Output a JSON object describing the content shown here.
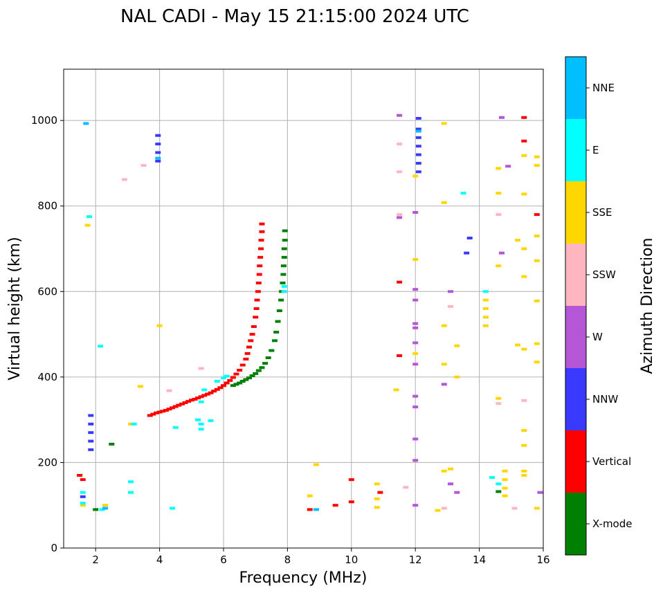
{
  "chart_data": {
    "type": "scatter",
    "title": "NAL CADI - May 15 21:15:00 2024 UTC",
    "xlabel": "Frequency (MHz)",
    "ylabel": "Virtual height (km)",
    "xlim": [
      1,
      16
    ],
    "ylim": [
      0,
      1120
    ],
    "xticks": [
      2,
      4,
      6,
      8,
      10,
      12,
      14,
      16
    ],
    "yticks": [
      0,
      200,
      400,
      600,
      800,
      1000
    ],
    "grid": true,
    "colorbar": {
      "label": "Azimuth Direction",
      "categories": [
        {
          "name": "X-mode",
          "color": "#008000"
        },
        {
          "name": "Vertical",
          "color": "#ff0000"
        },
        {
          "name": "NNW",
          "color": "#3a3aff"
        },
        {
          "name": "W",
          "color": "#b556d6"
        },
        {
          "name": "SSW",
          "color": "#ffb6c1"
        },
        {
          "name": "SSE",
          "color": "#ffd700"
        },
        {
          "name": "E",
          "color": "#00ffff"
        },
        {
          "name": "NNE",
          "color": "#00bfff"
        }
      ]
    },
    "series": [
      {
        "name": "Vertical",
        "color": "#ff0000",
        "points": [
          [
            3.7,
            310
          ],
          [
            3.8,
            313
          ],
          [
            3.9,
            316
          ],
          [
            4.0,
            318
          ],
          [
            4.1,
            320
          ],
          [
            4.2,
            322
          ],
          [
            4.3,
            325
          ],
          [
            4.4,
            328
          ],
          [
            4.5,
            331
          ],
          [
            4.6,
            334
          ],
          [
            4.7,
            337
          ],
          [
            4.8,
            340
          ],
          [
            4.9,
            343
          ],
          [
            5.0,
            346
          ],
          [
            5.1,
            348
          ],
          [
            5.2,
            351
          ],
          [
            5.3,
            354
          ],
          [
            5.4,
            357
          ],
          [
            5.5,
            360
          ],
          [
            5.6,
            363
          ],
          [
            5.7,
            367
          ],
          [
            5.8,
            371
          ],
          [
            5.9,
            375
          ],
          [
            6.0,
            380
          ],
          [
            6.1,
            386
          ],
          [
            6.2,
            392
          ],
          [
            6.3,
            399
          ],
          [
            6.4,
            407
          ],
          [
            6.5,
            416
          ],
          [
            6.6,
            428
          ],
          [
            6.7,
            442
          ],
          [
            6.75,
            455
          ],
          [
            6.8,
            470
          ],
          [
            6.85,
            485
          ],
          [
            6.9,
            500
          ],
          [
            6.95,
            518
          ],
          [
            7.0,
            540
          ],
          [
            7.03,
            560
          ],
          [
            7.05,
            580
          ],
          [
            7.08,
            600
          ],
          [
            7.1,
            620
          ],
          [
            7.12,
            640
          ],
          [
            7.13,
            660
          ],
          [
            7.15,
            680
          ],
          [
            7.17,
            700
          ],
          [
            7.18,
            720
          ],
          [
            7.2,
            740
          ],
          [
            7.2,
            758
          ],
          [
            1.5,
            170
          ],
          [
            1.6,
            160
          ],
          [
            8.7,
            90
          ],
          [
            9.5,
            100
          ],
          [
            10.0,
            108
          ],
          [
            10.0,
            160
          ],
          [
            10.9,
            130
          ],
          [
            11.5,
            622
          ],
          [
            11.5,
            450
          ],
          [
            15.4,
            1007
          ],
          [
            15.4,
            952
          ],
          [
            15.8,
            780
          ]
        ]
      },
      {
        "name": "X-mode",
        "color": "#008000",
        "points": [
          [
            6.3,
            380
          ],
          [
            6.4,
            383
          ],
          [
            6.5,
            386
          ],
          [
            6.6,
            390
          ],
          [
            6.7,
            394
          ],
          [
            6.8,
            398
          ],
          [
            6.9,
            403
          ],
          [
            7.0,
            408
          ],
          [
            7.1,
            415
          ],
          [
            7.2,
            422
          ],
          [
            7.3,
            432
          ],
          [
            7.4,
            445
          ],
          [
            7.5,
            462
          ],
          [
            7.6,
            485
          ],
          [
            7.65,
            505
          ],
          [
            7.7,
            530
          ],
          [
            7.75,
            555
          ],
          [
            7.8,
            580
          ],
          [
            7.82,
            600
          ],
          [
            7.85,
            620
          ],
          [
            7.87,
            640
          ],
          [
            7.88,
            660
          ],
          [
            7.9,
            680
          ],
          [
            7.9,
            700
          ],
          [
            7.92,
            720
          ],
          [
            7.92,
            742
          ],
          [
            2.5,
            243
          ],
          [
            2.0,
            90
          ],
          [
            14.6,
            132
          ]
        ]
      },
      {
        "name": "NNW",
        "color": "#3a3aff",
        "points": [
          [
            1.85,
            230
          ],
          [
            1.85,
            250
          ],
          [
            1.85,
            270
          ],
          [
            1.85,
            290
          ],
          [
            1.85,
            310
          ],
          [
            3.95,
            905
          ],
          [
            3.95,
            925
          ],
          [
            3.95,
            945
          ],
          [
            3.95,
            965
          ],
          [
            12.1,
            880
          ],
          [
            12.1,
            900
          ],
          [
            12.1,
            920
          ],
          [
            12.1,
            940
          ],
          [
            12.1,
            960
          ],
          [
            12.1,
            980
          ],
          [
            12.1,
            1005
          ],
          [
            13.7,
            725
          ],
          [
            13.6,
            690
          ],
          [
            1.6,
            120
          ]
        ]
      },
      {
        "name": "W",
        "color": "#b556d6",
        "points": [
          [
            12.0,
            100
          ],
          [
            12.0,
            205
          ],
          [
            12.0,
            255
          ],
          [
            12.0,
            330
          ],
          [
            12.0,
            355
          ],
          [
            12.0,
            430
          ],
          [
            12.0,
            480
          ],
          [
            12.0,
            515
          ],
          [
            12.0,
            525
          ],
          [
            12.0,
            580
          ],
          [
            12.0,
            605
          ],
          [
            12.0,
            785
          ],
          [
            11.5,
            1012
          ],
          [
            11.5,
            773
          ],
          [
            12.9,
            383
          ],
          [
            13.1,
            150
          ],
          [
            13.1,
            600
          ],
          [
            13.3,
            130
          ],
          [
            14.7,
            1007
          ],
          [
            14.7,
            690
          ],
          [
            14.9,
            893
          ],
          [
            15.9,
            130
          ]
        ]
      },
      {
        "name": "SSW",
        "color": "#ffb6c1",
        "points": [
          [
            3.5,
            895
          ],
          [
            2.9,
            862
          ],
          [
            4.3,
            368
          ],
          [
            5.3,
            420
          ],
          [
            11.5,
            880
          ],
          [
            11.5,
            945
          ],
          [
            11.5,
            780
          ],
          [
            12.9,
            93
          ],
          [
            13.1,
            565
          ],
          [
            14.6,
            780
          ],
          [
            14.6,
            338
          ],
          [
            15.1,
            93
          ],
          [
            15.4,
            345
          ],
          [
            11.7,
            142
          ]
        ]
      },
      {
        "name": "SSE",
        "color": "#ffd700",
        "points": [
          [
            12.9,
            993
          ],
          [
            12.9,
            808
          ],
          [
            12.9,
            520
          ],
          [
            12.9,
            430
          ],
          [
            12.9,
            180
          ],
          [
            13.1,
            185
          ],
          [
            12.7,
            88
          ],
          [
            13.3,
            400
          ],
          [
            13.3,
            473
          ],
          [
            14.6,
            888
          ],
          [
            14.6,
            830
          ],
          [
            14.6,
            660
          ],
          [
            14.6,
            350
          ],
          [
            14.2,
            520
          ],
          [
            14.2,
            540
          ],
          [
            14.2,
            560
          ],
          [
            14.2,
            580
          ],
          [
            15.2,
            720
          ],
          [
            15.4,
            828
          ],
          [
            15.4,
            918
          ],
          [
            15.4,
            700
          ],
          [
            15.4,
            635
          ],
          [
            15.4,
            465
          ],
          [
            15.4,
            275
          ],
          [
            15.4,
            240
          ],
          [
            15.4,
            180
          ],
          [
            15.4,
            170
          ],
          [
            15.2,
            475
          ],
          [
            15.8,
            915
          ],
          [
            15.8,
            895
          ],
          [
            15.8,
            730
          ],
          [
            15.8,
            672
          ],
          [
            15.8,
            578
          ],
          [
            15.8,
            478
          ],
          [
            15.8,
            435
          ],
          [
            15.8,
            93
          ],
          [
            8.7,
            122
          ],
          [
            8.9,
            195
          ],
          [
            10.8,
            95
          ],
          [
            10.8,
            115
          ],
          [
            10.8,
            150
          ],
          [
            11.4,
            370
          ],
          [
            12.0,
            455
          ],
          [
            12.0,
            675
          ],
          [
            12.0,
            870
          ],
          [
            3.4,
            378
          ],
          [
            3.1,
            290
          ],
          [
            2.3,
            100
          ],
          [
            1.75,
            755
          ],
          [
            1.6,
            100
          ],
          [
            4.0,
            520
          ],
          [
            14.8,
            122
          ],
          [
            14.8,
            140
          ],
          [
            14.8,
            160
          ],
          [
            14.8,
            180
          ]
        ]
      },
      {
        "name": "E",
        "color": "#00ffff",
        "points": [
          [
            1.6,
            105
          ],
          [
            1.6,
            130
          ],
          [
            3.1,
            130
          ],
          [
            3.1,
            155
          ],
          [
            4.4,
            93
          ],
          [
            2.2,
            90
          ],
          [
            4.5,
            282
          ],
          [
            5.2,
            300
          ],
          [
            5.3,
            290
          ],
          [
            5.3,
            278
          ],
          [
            5.6,
            298
          ],
          [
            5.3,
            342
          ],
          [
            5.4,
            370
          ],
          [
            5.8,
            390
          ],
          [
            6.0,
            398
          ],
          [
            6.1,
            402
          ],
          [
            7.9,
            600
          ],
          [
            7.9,
            612
          ],
          [
            13.5,
            830
          ],
          [
            14.2,
            600
          ],
          [
            14.4,
            165
          ],
          [
            14.6,
            150
          ],
          [
            1.8,
            775
          ],
          [
            2.15,
            472
          ],
          [
            3.2,
            290
          ]
        ]
      },
      {
        "name": "NNE",
        "color": "#00bfff",
        "points": [
          [
            1.7,
            993
          ],
          [
            3.95,
            912
          ],
          [
            2.3,
            93
          ],
          [
            8.9,
            90
          ],
          [
            12.1,
            975
          ]
        ]
      }
    ]
  }
}
